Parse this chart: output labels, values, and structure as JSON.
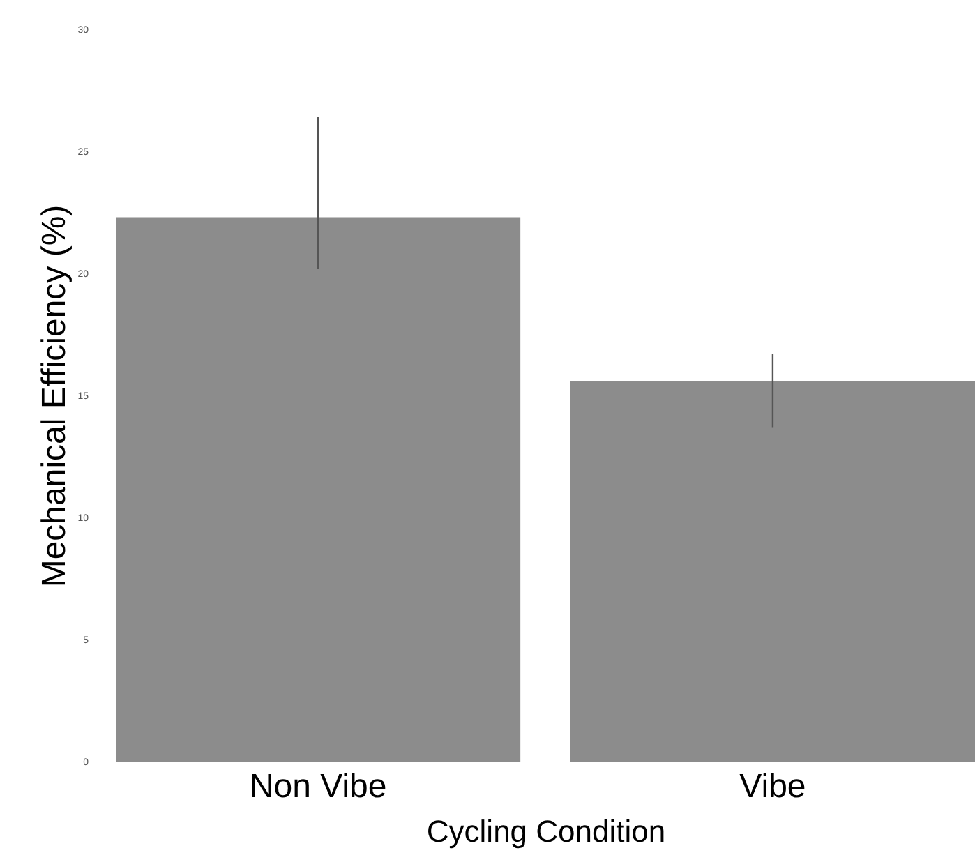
{
  "chart_data": {
    "type": "bar",
    "xlabel": "Cycling Condition",
    "ylabel": "Mechanical Efficiency (%)",
    "categories": [
      "Non Vibe",
      "Vibe"
    ],
    "values": [
      22.3,
      15.6
    ],
    "errors": [
      [
        20.2,
        26.4
      ],
      [
        13.7,
        16.7
      ]
    ],
    "color": "#8c8c8c",
    "ylim": [
      0,
      30
    ],
    "yticks": [
      0,
      5,
      10,
      15,
      20,
      25,
      30
    ],
    "grid": false
  }
}
